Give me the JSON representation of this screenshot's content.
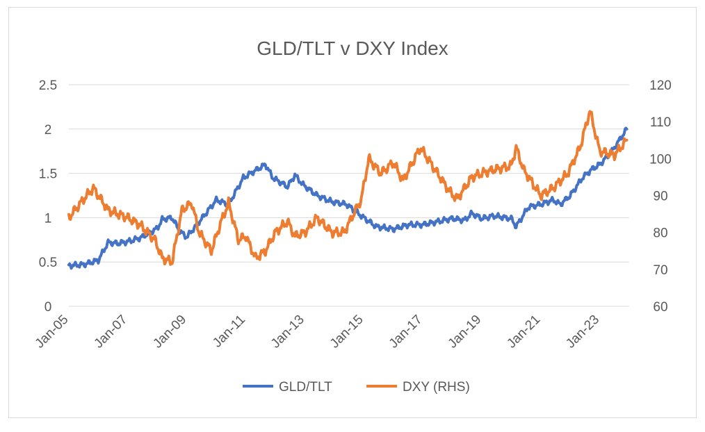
{
  "chart_data": {
    "type": "line",
    "title": "GLD/TLT v DXY Index",
    "x_ticks": [
      "Jan-05",
      "Jan-07",
      "Jan-09",
      "Jan-11",
      "Jan-13",
      "Jan-15",
      "Jan-17",
      "Jan-19",
      "Jan-21",
      "Jan-23"
    ],
    "x_range": [
      "2005-01",
      "2024-01"
    ],
    "y_left": {
      "range": [
        0,
        2.5
      ],
      "ticks": [
        "0",
        "0.5",
        "1",
        "1.5",
        "2",
        "2.5"
      ]
    },
    "y_right": {
      "range": [
        60,
        120
      ],
      "ticks": [
        "60",
        "70",
        "80",
        "90",
        "100",
        "110",
        "120"
      ]
    },
    "grid": "horizontal",
    "legend_position": "bottom",
    "series": [
      {
        "name": "GLD/TLT",
        "axis": "left",
        "color": "#4472C4",
        "x": [
          "2005-01",
          "2005-07",
          "2006-01",
          "2006-05",
          "2006-09",
          "2007-01",
          "2007-06",
          "2008-01",
          "2008-03",
          "2008-07",
          "2008-10",
          "2009-01",
          "2009-06",
          "2010-01",
          "2010-06",
          "2010-12",
          "2011-06",
          "2011-09",
          "2011-12",
          "2012-03",
          "2012-06",
          "2012-09",
          "2012-12",
          "2013-06",
          "2013-12",
          "2014-06",
          "2014-12",
          "2015-06",
          "2016-01",
          "2016-07",
          "2017-01",
          "2017-06",
          "2018-01",
          "2018-06",
          "2018-09",
          "2019-01",
          "2019-06",
          "2020-01",
          "2020-03",
          "2020-08",
          "2021-01",
          "2021-06",
          "2021-09",
          "2022-01",
          "2022-06",
          "2022-10",
          "2023-01",
          "2023-06",
          "2023-12"
        ],
        "values": [
          0.46,
          0.47,
          0.52,
          0.72,
          0.71,
          0.73,
          0.77,
          0.88,
          0.98,
          1.0,
          0.85,
          0.78,
          0.95,
          1.2,
          1.15,
          1.45,
          1.55,
          1.6,
          1.45,
          1.4,
          1.35,
          1.48,
          1.38,
          1.25,
          1.18,
          1.15,
          1.02,
          0.9,
          0.87,
          0.92,
          0.92,
          0.95,
          0.99,
          0.97,
          1.05,
          0.99,
          1.02,
          0.99,
          0.9,
          1.12,
          1.15,
          1.2,
          1.15,
          1.25,
          1.45,
          1.55,
          1.6,
          1.75,
          2.0
        ]
      },
      {
        "name": "DXY (RHS)",
        "axis": "right",
        "color": "#ED7D31",
        "x": [
          "2005-01",
          "2005-07",
          "2005-11",
          "2006-05",
          "2007-01",
          "2007-06",
          "2007-12",
          "2008-03",
          "2008-07",
          "2008-11",
          "2009-03",
          "2009-06",
          "2009-11",
          "2010-03",
          "2010-06",
          "2010-10",
          "2011-01",
          "2011-05",
          "2011-09",
          "2012-01",
          "2012-06",
          "2012-09",
          "2013-01",
          "2013-06",
          "2013-12",
          "2014-05",
          "2014-12",
          "2015-03",
          "2015-08",
          "2016-01",
          "2016-05",
          "2016-12",
          "2017-06",
          "2017-12",
          "2018-03",
          "2018-09",
          "2019-01",
          "2019-06",
          "2020-01",
          "2020-03",
          "2020-06",
          "2021-01",
          "2021-06",
          "2021-12",
          "2022-05",
          "2022-09",
          "2023-01",
          "2023-07",
          "2023-12"
        ],
        "values": [
          84,
          89,
          92,
          86,
          84,
          82,
          78,
          73,
          72,
          86,
          88,
          80,
          75,
          83,
          88,
          78,
          79,
          73,
          75,
          80,
          83,
          79,
          80,
          84,
          80,
          80,
          89,
          100,
          96,
          99,
          94,
          103,
          97,
          91,
          89,
          95,
          96,
          97,
          98,
          103,
          97,
          90,
          92,
          96,
          103,
          113,
          102,
          101,
          105
        ]
      }
    ]
  }
}
